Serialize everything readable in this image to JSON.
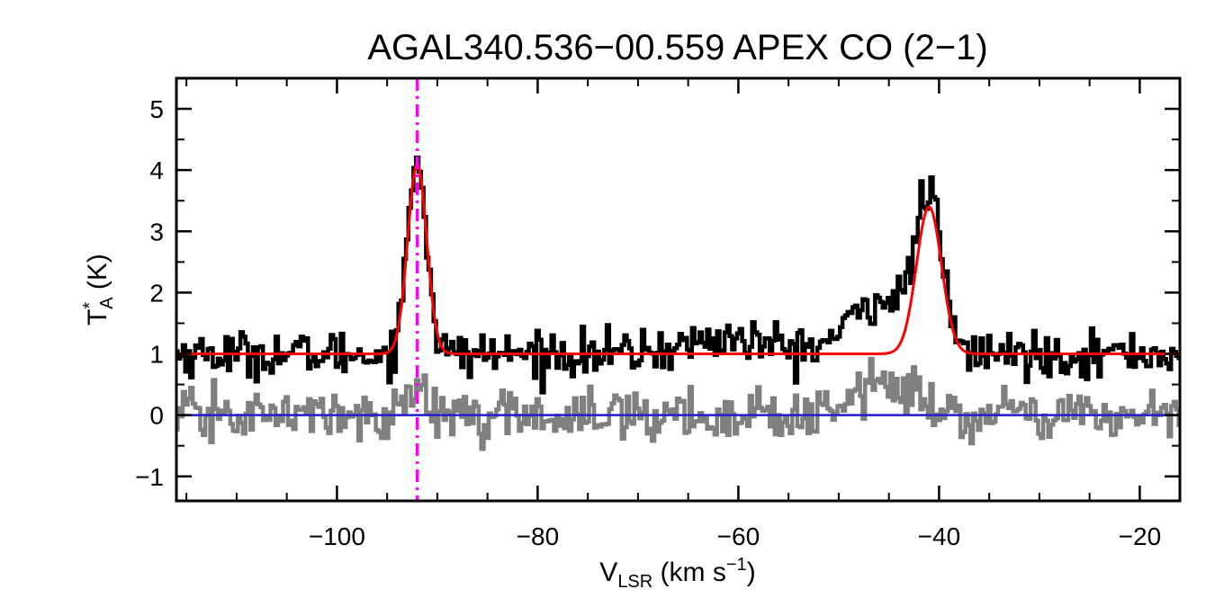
{
  "chart_data": {
    "type": "line",
    "title": "AGAL340.536−00.559  APEX CO (2−1)",
    "xlabel": {
      "main": "V",
      "sub": "LSR",
      "units_prefix": " (km s",
      "units_sup": "−1",
      "units_suffix": ")"
    },
    "ylabel": {
      "main": "T",
      "sup": "*",
      "sub": "A",
      "units": " (K)"
    },
    "xlim": [
      -116,
      -16
    ],
    "ylim": [
      -1.4,
      5.5
    ],
    "xticks": [
      -100,
      -80,
      -60,
      -40,
      -20
    ],
    "xtick_labels": [
      "−100",
      "−80",
      "−60",
      "−40",
      "−20"
    ],
    "yticks": [
      -1,
      0,
      1,
      2,
      3,
      4,
      5
    ],
    "ytick_labels": [
      "−1",
      "0",
      "1",
      "2",
      "3",
      "4",
      "5"
    ],
    "x_minor_step": 5,
    "y_minor_step": 0.5,
    "series": [
      {
        "role": "observed_spectrum",
        "color": "#000000",
        "style": "histogram",
        "x_start": -116,
        "x_step": 0.25,
        "baseline_offset": 1.0,
        "noise_rms": 0.18,
        "components": [
          {
            "center": -92.0,
            "amp": 3.2,
            "sigma": 0.95
          },
          {
            "center": -41.0,
            "amp": 2.35,
            "sigma": 1.25
          },
          {
            "center": -45.5,
            "amp": 0.9,
            "sigma": 3.2
          },
          {
            "center": -61.0,
            "amp": 0.25,
            "sigma": 4.0
          }
        ]
      },
      {
        "role": "residual",
        "color": "#808080",
        "style": "histogram",
        "x_start": -116,
        "x_step": 0.25,
        "baseline_offset": 0.0,
        "noise_rms": 0.2,
        "components": [
          {
            "center": -92.0,
            "amp": 0.4,
            "sigma": 0.9
          },
          {
            "center": -45.5,
            "amp": 0.5,
            "sigma": 3.0
          }
        ]
      },
      {
        "role": "gaussian_fit",
        "color": "#ff0000",
        "style": "line",
        "baseline": 1.0,
        "components": [
          {
            "center": -92.0,
            "amp": 3.1,
            "sigma": 0.95
          },
          {
            "center": -41.0,
            "amp": 2.4,
            "sigma": 1.25
          }
        ]
      }
    ],
    "zero_line": {
      "y": 0,
      "color": "#1f1fcc"
    },
    "vline": {
      "x": -92.0,
      "color": "#ff00ff",
      "style": "dash-dot"
    },
    "grid": false
  }
}
